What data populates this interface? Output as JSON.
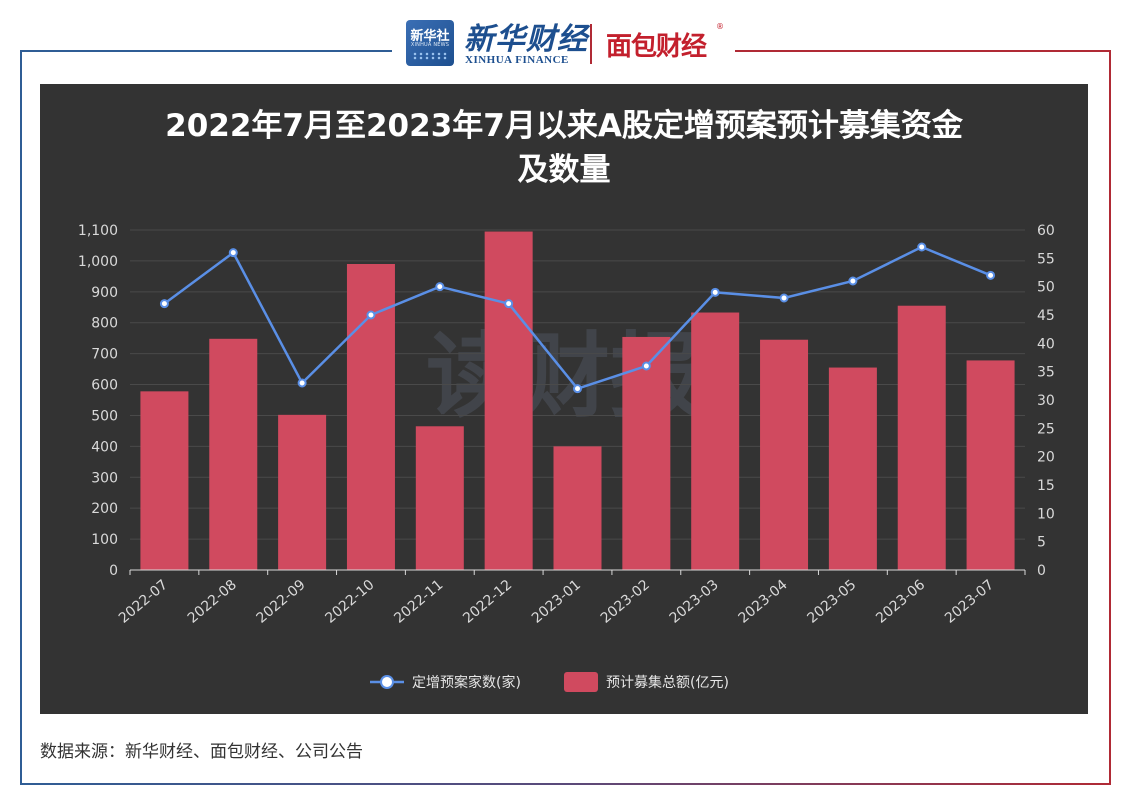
{
  "header": {
    "logo_badge": "新华社",
    "logo_badge_sub": "XINHUA NEWS",
    "brand_cn": "新华财经",
    "brand_en": "XINHUA FINANCE",
    "brand_partner": "面包财经",
    "brand_reg": "®"
  },
  "chart_data": {
    "type": "bar",
    "title_line1": "2022年7月至2023年7月以来A股定增预案预计募集资金",
    "title_line2": "及数量",
    "categories": [
      "2022-07",
      "2022-08",
      "2022-09",
      "2022-10",
      "2022-11",
      "2022-12",
      "2023-01",
      "2023-02",
      "2023-03",
      "2023-04",
      "2023-05",
      "2023-06",
      "2023-07"
    ],
    "series": [
      {
        "name": "预计募集总额(亿元)",
        "type": "bar",
        "axis": "left",
        "values": [
          578,
          748,
          502,
          990,
          465,
          1095,
          400,
          754,
          833,
          745,
          655,
          855,
          678
        ]
      },
      {
        "name": "定增预案家数(家)",
        "type": "line",
        "axis": "right",
        "values": [
          47,
          56,
          33,
          45,
          50,
          47,
          32,
          36,
          49,
          48,
          51,
          57,
          52
        ]
      }
    ],
    "left_axis": {
      "min": 0,
      "max": 1100,
      "ticks": [
        "0",
        "100",
        "200",
        "300",
        "400",
        "500",
        "600",
        "700",
        "800",
        "900",
        "1,000",
        "1,100"
      ]
    },
    "right_axis": {
      "min": 0,
      "max": 60,
      "ticks": [
        "0",
        "5",
        "10",
        "15",
        "20",
        "25",
        "30",
        "35",
        "40",
        "45",
        "50",
        "55",
        "60"
      ]
    },
    "legend_position": "bottom-center",
    "grid": true,
    "watermark": "读财报",
    "colors": {
      "bar": "#d04a5f",
      "line": "#5a8fe6",
      "background": "#333333"
    }
  },
  "footer": {
    "source": "数据来源：新华财经、面包财经、公司公告"
  }
}
